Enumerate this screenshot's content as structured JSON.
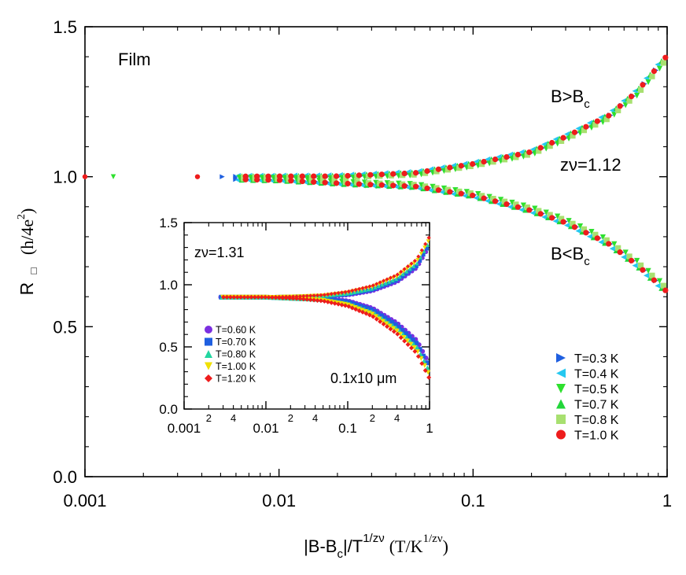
{
  "chart_data": {
    "type": "scatter",
    "main": {
      "x_scale": "log",
      "xlim": [
        0.001,
        1
      ],
      "ylim": [
        0,
        1.5
      ],
      "xticks": [
        "0.001",
        "0.01",
        "0.1",
        "1"
      ],
      "yticks": [
        "0.0",
        "0.5",
        "1.0",
        "1.5"
      ],
      "xlabel": {
        "pre": "|B-B",
        "sub": "c",
        "mid": "|/T",
        "sup": "1/zν",
        "unit_pre": "(T/K",
        "unit_sup": "1/zν",
        "unit_post": ")"
      },
      "ylabel": {
        "symbol": "R",
        "box": "□",
        "unit_pre": "(h/4e",
        "unit_sup": "2",
        "unit_post": ")"
      },
      "annotations": {
        "sample": "Film",
        "upper_pre": "B>B",
        "upper_sub": "c",
        "lower_pre": "B<B",
        "lower_sub": "c",
        "exponent": "zν=1.12"
      },
      "legend": {
        "placement": "bottom-right",
        "entries": [
          {
            "label": "T=0.3 K",
            "marker": "triangle-right",
            "color": "#1f5fe0"
          },
          {
            "label": "T=0.4 K",
            "marker": "triangle-left",
            "color": "#25c8f0"
          },
          {
            "label": "T=0.5 K",
            "marker": "triangle-down",
            "color": "#2ee02e"
          },
          {
            "label": "T=0.7 K",
            "marker": "triangle-up",
            "color": "#22d63a"
          },
          {
            "label": "T=0.8 K",
            "marker": "square",
            "color": "#a8e070"
          },
          {
            "label": "T=1.0 K",
            "marker": "circle",
            "color": "#ee1c1c"
          }
        ]
      },
      "collapse": {
        "description": "all temperatures collapse onto two branches",
        "upper_branch": {
          "x": [
            0.001,
            0.01,
            0.02,
            0.05,
            0.1,
            0.2,
            0.3,
            0.5,
            0.7,
            1.0
          ],
          "y": [
            1.0,
            1.0,
            1.0,
            1.01,
            1.04,
            1.08,
            1.13,
            1.2,
            1.28,
            1.4
          ]
        },
        "lower_branch": {
          "x": [
            0.001,
            0.01,
            0.02,
            0.05,
            0.1,
            0.2,
            0.3,
            0.5,
            0.7,
            1.0
          ],
          "y": [
            1.0,
            0.99,
            0.98,
            0.97,
            0.94,
            0.89,
            0.85,
            0.78,
            0.71,
            0.62
          ]
        }
      }
    },
    "inset": {
      "x_scale": "log",
      "xlim": [
        0.001,
        1
      ],
      "ylim": [
        0,
        1.5
      ],
      "xticks": [
        "0.001",
        "0.01",
        "0.1",
        "1"
      ],
      "minor_labels": [
        "2",
        "4",
        "2",
        "4",
        "2",
        "4",
        "2",
        "4"
      ],
      "yticks": [
        "0.0",
        "0.5",
        "1.0",
        "1.5"
      ],
      "annotations": {
        "exponent": "zν=1.31",
        "sample": "0.1x10 μm"
      },
      "legend": {
        "placement": "bottom-left",
        "entries": [
          {
            "label": "T=0.60 K",
            "marker": "circle",
            "color": "#7b2fe0"
          },
          {
            "label": "T=0.70 K",
            "marker": "square",
            "color": "#1f5fe0"
          },
          {
            "label": "T=0.80 K",
            "marker": "triangle-up",
            "color": "#22d6a0"
          },
          {
            "label": "T=1.00 K",
            "marker": "triangle-down",
            "color": "#f0e000"
          },
          {
            "label": "T=1.20 K",
            "marker": "diamond",
            "color": "#ee1c1c"
          }
        ]
      },
      "collapse": {
        "upper_branch": {
          "x": [
            0.003,
            0.01,
            0.05,
            0.1,
            0.2,
            0.4,
            0.7,
            1.0
          ],
          "y": [
            0.9,
            0.9,
            0.91,
            0.93,
            0.97,
            1.05,
            1.17,
            1.35
          ]
        },
        "lower_branch": {
          "x": [
            0.003,
            0.01,
            0.05,
            0.1,
            0.2,
            0.4,
            0.7,
            1.0
          ],
          "y": [
            0.9,
            0.9,
            0.88,
            0.85,
            0.78,
            0.65,
            0.5,
            0.3
          ]
        }
      }
    }
  }
}
